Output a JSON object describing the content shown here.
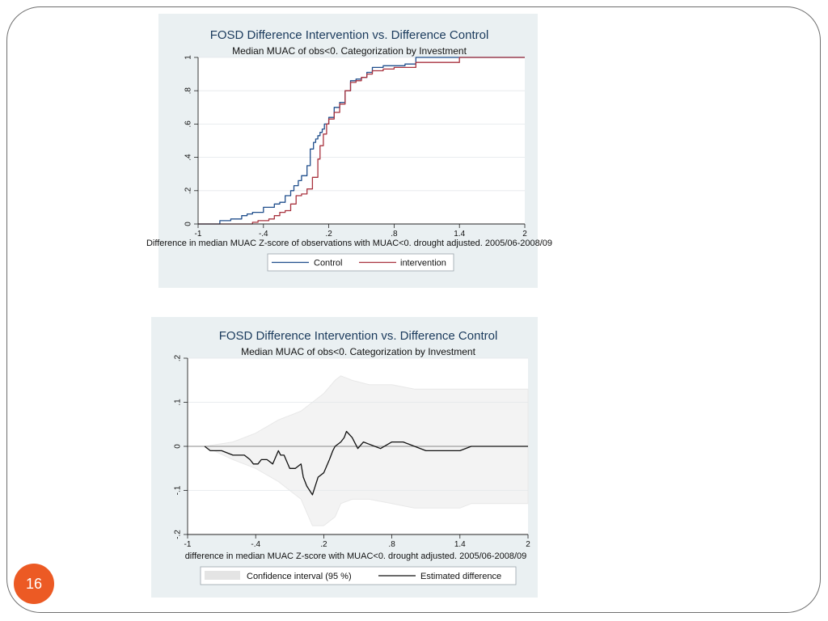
{
  "slide": {
    "page_number": "16",
    "badge_color": "#ec5a24"
  },
  "chart_data": [
    {
      "type": "line",
      "title": "FOSD Difference Intervention vs. Difference Control",
      "subtitle": "Median MUAC of obs<0. Categorization by Investment",
      "xlabel": "Difference in median MUAC Z-score of observations with MUAC<0. drought adjusted. 2005/06-2008/09",
      "ylabel": "",
      "xlim": [
        -1,
        2
      ],
      "ylim": [
        0,
        1
      ],
      "x_ticks": [
        "-1",
        "-.4",
        ".2",
        ".8",
        "1.4",
        "2"
      ],
      "y_ticks": [
        "0",
        ".2",
        ".4",
        ".6",
        ".8",
        "1"
      ],
      "grid": true,
      "legend_position": "bottom",
      "series": [
        {
          "name": "Control",
          "color": "#1f4e8c",
          "x": [
            -1.0,
            -0.85,
            -0.8,
            -0.7,
            -0.6,
            -0.55,
            -0.5,
            -0.4,
            -0.3,
            -0.25,
            -0.2,
            -0.15,
            -0.12,
            -0.08,
            -0.05,
            0.0,
            0.03,
            0.06,
            0.08,
            0.1,
            0.12,
            0.14,
            0.16,
            0.2,
            0.25,
            0.3,
            0.35,
            0.4,
            0.45,
            0.5,
            0.55,
            0.6,
            0.7,
            0.8,
            0.9,
            1.0,
            1.2,
            1.4,
            1.6,
            2.0
          ],
          "values": [
            0.0,
            0.0,
            0.02,
            0.03,
            0.05,
            0.06,
            0.07,
            0.1,
            0.12,
            0.13,
            0.17,
            0.2,
            0.23,
            0.26,
            0.29,
            0.35,
            0.45,
            0.49,
            0.51,
            0.53,
            0.55,
            0.57,
            0.6,
            0.64,
            0.7,
            0.73,
            0.8,
            0.86,
            0.87,
            0.88,
            0.91,
            0.94,
            0.95,
            0.95,
            0.96,
            1.0,
            1.0,
            1.0,
            1.0,
            1.0
          ]
        },
        {
          "name": "intervention",
          "color": "#a8323e",
          "x": [
            -1.0,
            -0.7,
            -0.55,
            -0.5,
            -0.45,
            -0.35,
            -0.3,
            -0.25,
            -0.2,
            -0.15,
            -0.1,
            -0.05,
            0.0,
            0.05,
            0.1,
            0.12,
            0.15,
            0.18,
            0.2,
            0.25,
            0.3,
            0.35,
            0.4,
            0.45,
            0.5,
            0.55,
            0.6,
            0.7,
            0.8,
            0.9,
            1.0,
            1.2,
            1.3,
            1.4,
            2.0
          ],
          "values": [
            0.0,
            0.0,
            0.0,
            0.01,
            0.02,
            0.03,
            0.05,
            0.07,
            0.08,
            0.12,
            0.17,
            0.18,
            0.21,
            0.28,
            0.39,
            0.47,
            0.54,
            0.6,
            0.63,
            0.67,
            0.72,
            0.8,
            0.85,
            0.86,
            0.88,
            0.9,
            0.92,
            0.93,
            0.94,
            0.94,
            0.97,
            0.97,
            0.97,
            1.0,
            1.0
          ]
        }
      ]
    },
    {
      "type": "line",
      "title": "FOSD Difference Intervention vs. Difference Control",
      "subtitle": "Median MUAC of obs<0.  Categorization by Investment",
      "xlabel": "difference in median MUAC Z-score with MUAC<0. drought adjusted. 2005/06-2008/09",
      "ylabel": "",
      "xlim": [
        -1,
        2
      ],
      "ylim": [
        -0.2,
        0.2
      ],
      "x_ticks": [
        "-1",
        "-.4",
        ".2",
        ".8",
        "1.4",
        "2"
      ],
      "y_ticks": [
        "-.2",
        "-.1",
        "0",
        ".1",
        ".2"
      ],
      "grid": true,
      "legend_position": "bottom",
      "series": [
        {
          "name": "Estimated difference",
          "color": "#111111",
          "x": [
            -0.85,
            -0.8,
            -0.7,
            -0.6,
            -0.5,
            -0.45,
            -0.42,
            -0.38,
            -0.35,
            -0.3,
            -0.25,
            -0.2,
            -0.18,
            -0.15,
            -0.1,
            -0.05,
            0.0,
            0.02,
            0.05,
            0.1,
            0.15,
            0.2,
            0.25,
            0.28,
            0.3,
            0.35,
            0.38,
            0.4,
            0.45,
            0.5,
            0.55,
            0.6,
            0.65,
            0.7,
            0.8,
            0.9,
            1.0,
            1.1,
            1.2,
            1.3,
            1.4,
            1.5,
            2.0
          ],
          "values": [
            0.0,
            -0.01,
            -0.01,
            -0.02,
            -0.02,
            -0.03,
            -0.04,
            -0.04,
            -0.03,
            -0.03,
            -0.04,
            -0.01,
            -0.02,
            -0.02,
            -0.05,
            -0.05,
            -0.04,
            -0.07,
            -0.09,
            -0.11,
            -0.07,
            -0.06,
            -0.03,
            -0.01,
            0.0,
            0.01,
            0.02,
            0.034,
            0.02,
            -0.005,
            0.01,
            0.005,
            0.0,
            -0.005,
            0.01,
            0.01,
            0.0,
            -0.01,
            -0.01,
            -0.01,
            -0.01,
            0.0,
            0.0
          ]
        },
        {
          "name": "Confidence interval (95 %)",
          "color": "#e8e8e8",
          "x": [
            -0.85,
            -0.6,
            -0.4,
            -0.2,
            0.0,
            0.1,
            0.2,
            0.3,
            0.35,
            0.45,
            0.6,
            0.8,
            1.0,
            1.2,
            1.4,
            1.5,
            2.0
          ],
          "upper": [
            0.0,
            0.01,
            0.03,
            0.06,
            0.08,
            0.1,
            0.12,
            0.15,
            0.16,
            0.15,
            0.14,
            0.14,
            0.13,
            0.13,
            0.13,
            0.13,
            0.13
          ],
          "lower": [
            0.0,
            -0.03,
            -0.05,
            -0.08,
            -0.12,
            -0.18,
            -0.18,
            -0.16,
            -0.13,
            -0.12,
            -0.12,
            -0.13,
            -0.14,
            -0.14,
            -0.14,
            -0.13,
            -0.13
          ]
        }
      ]
    }
  ]
}
